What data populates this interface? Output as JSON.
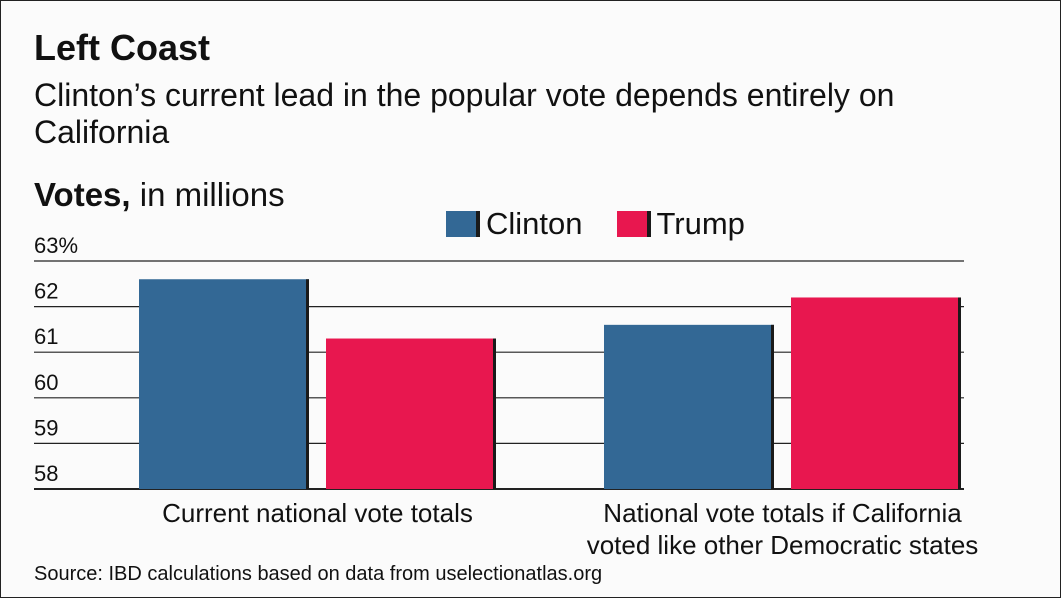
{
  "header": {
    "title": "Left Coast",
    "subtitle": "Clinton’s current lead in the popular vote depends entirely on California",
    "units_bold": "Votes,",
    "units_rest": " in millions"
  },
  "colors": {
    "clinton": "#336895",
    "trump": "#e8174f",
    "grid": "#222222",
    "bar_shadow": "#1a1a1a"
  },
  "chart_data": {
    "type": "bar",
    "title": "Left Coast",
    "ylabel": "Votes, in millions",
    "xlabel": "",
    "categories": [
      "Current national vote totals",
      "National vote totals if California voted like other Democratic states"
    ],
    "category_lines": [
      [
        "Current national vote totals"
      ],
      [
        "National vote totals if California",
        "voted like other Democratic states"
      ]
    ],
    "series": [
      {
        "name": "Clinton",
        "values": [
          62.6,
          61.6
        ]
      },
      {
        "name": "Trump",
        "values": [
          61.3,
          62.2
        ]
      }
    ],
    "ylim": [
      58,
      63
    ],
    "yticks": [
      58,
      59,
      60,
      61,
      62,
      63
    ],
    "ytick_labels": [
      "58",
      "59",
      "60",
      "61",
      "62",
      "63%"
    ],
    "legend": "top-center"
  },
  "source": "Source: IBD calculations based on data from uselectionatlas.org"
}
